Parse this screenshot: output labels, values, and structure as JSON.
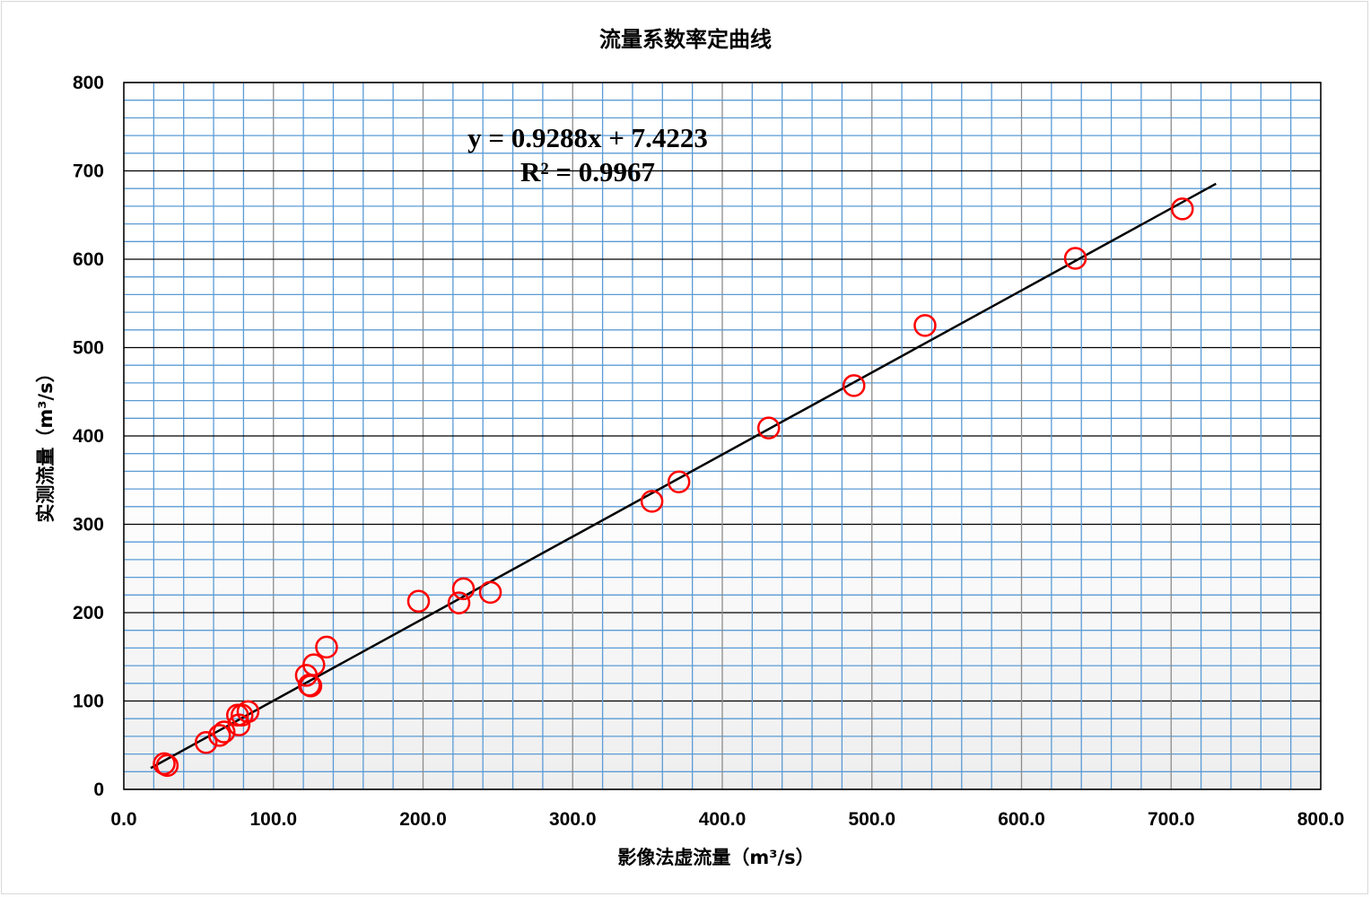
{
  "chart_data": {
    "type": "scatter",
    "title": "流量系数率定曲线",
    "xlabel": "影像法虚流量（m³/s）",
    "ylabel": "实测流量（m³/s）",
    "xlim": [
      0,
      800
    ],
    "ylim": [
      0,
      800
    ],
    "xticks": [
      "0.0",
      "100.0",
      "200.0",
      "300.0",
      "400.0",
      "500.0",
      "600.0",
      "700.0",
      "800.0"
    ],
    "yticks": [
      "0",
      "100",
      "200",
      "300",
      "400",
      "500",
      "600",
      "700",
      "800"
    ],
    "grid": true,
    "marker_color": "#ff0000",
    "trendline_color": "#000000",
    "minor_grid_color": "#5b9bd5",
    "points": [
      [
        27,
        29
      ],
      [
        29,
        27
      ],
      [
        55,
        53
      ],
      [
        64,
        61
      ],
      [
        67,
        65
      ],
      [
        77,
        73
      ],
      [
        76,
        84
      ],
      [
        79,
        84
      ],
      [
        83,
        88
      ],
      [
        122,
        129
      ],
      [
        124,
        118
      ],
      [
        125,
        117
      ],
      [
        127,
        141
      ],
      [
        135.5,
        161
      ],
      [
        197,
        213
      ],
      [
        224,
        211
      ],
      [
        227,
        227
      ],
      [
        245,
        223
      ],
      [
        353,
        326
      ],
      [
        371,
        348
      ],
      [
        431,
        409
      ],
      [
        488,
        457
      ],
      [
        535.5,
        525
      ],
      [
        636,
        601
      ],
      [
        707.5,
        657
      ]
    ],
    "trendline": {
      "slope": 0.9288,
      "intercept": 7.4223,
      "x_range": [
        18,
        730
      ]
    },
    "annotations": {
      "equation": "y = 0.9288x + 7.4223",
      "r2": "R² = 0.9967"
    }
  }
}
